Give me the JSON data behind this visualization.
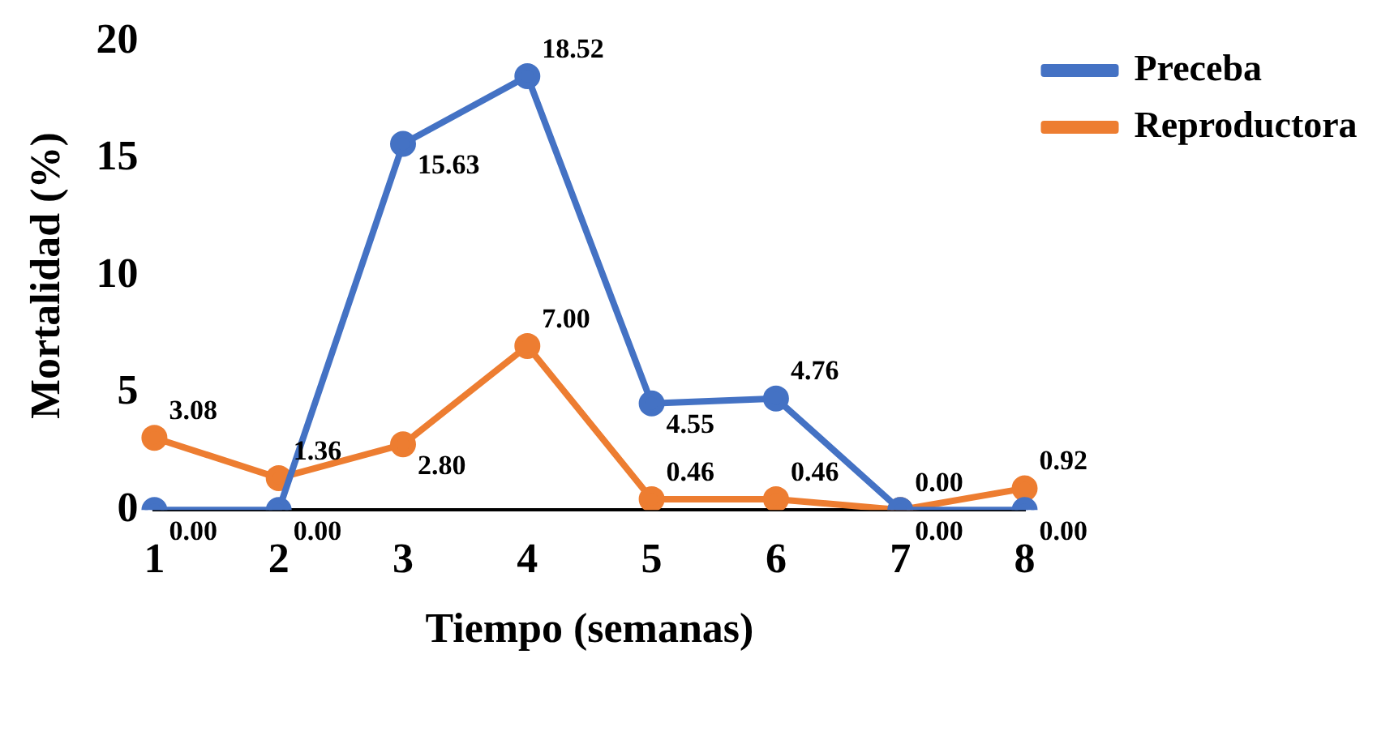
{
  "chart_data": {
    "type": "line",
    "xlabel": "Tiempo (semanas)",
    "ylabel": "Mortalidad (%)",
    "categories": [
      "1",
      "2",
      "3",
      "4",
      "5",
      "6",
      "7",
      "8"
    ],
    "series": [
      {
        "name": "Preceba",
        "color": "#4472c4",
        "values": [
          0.0,
          0.0,
          15.63,
          18.52,
          4.55,
          4.76,
          0.0,
          0.0
        ],
        "value_labels": [
          "0.00",
          "0.00",
          "15.63",
          "18.52",
          "4.55",
          "4.76",
          "0.00",
          "0.00"
        ]
      },
      {
        "name": "Reproductora",
        "color": "#ed7d31",
        "values": [
          3.08,
          1.36,
          2.8,
          7.0,
          0.46,
          0.46,
          0.0,
          0.92
        ],
        "value_labels": [
          "3.08",
          "1.36",
          "2.80",
          "7.00",
          "0.46",
          "0.46",
          "0.00",
          "0.92"
        ]
      }
    ],
    "ylim": [
      0,
      20
    ],
    "yticks": [
      0,
      5,
      10,
      15,
      20
    ],
    "grid": false,
    "legend": "top right",
    "marker": "circle",
    "line_style": "solid"
  }
}
